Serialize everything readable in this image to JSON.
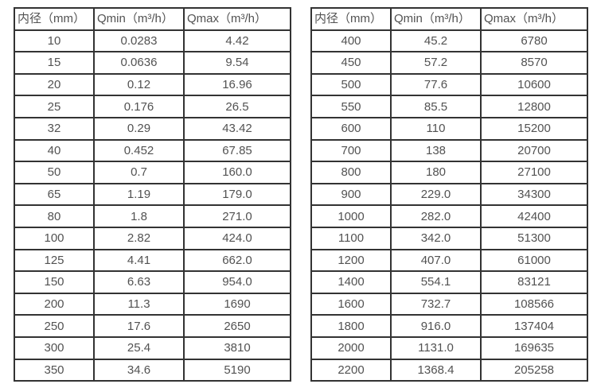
{
  "page": {
    "background": "#ffffff",
    "text_color": "#525252",
    "border_color": "#333333"
  },
  "tables": [
    {
      "name": "small-diameters",
      "headers": [
        "内径（mm）",
        "Qmin（m³/h）",
        "Qmax（m³/h）"
      ],
      "rows": [
        [
          "10",
          "0.0283",
          "4.42"
        ],
        [
          "15",
          "0.0636",
          "9.54"
        ],
        [
          "20",
          "0.12",
          "16.96"
        ],
        [
          "25",
          "0.176",
          "26.5"
        ],
        [
          "32",
          "0.29",
          "43.42"
        ],
        [
          "40",
          "0.452",
          "67.85"
        ],
        [
          "50",
          "0.7",
          "160.0"
        ],
        [
          "65",
          "1.19",
          "179.0"
        ],
        [
          "80",
          "1.8",
          "271.0"
        ],
        [
          "100",
          "2.82",
          "424.0"
        ],
        [
          "125",
          "4.41",
          "662.0"
        ],
        [
          "150",
          "6.63",
          "954.0"
        ],
        [
          "200",
          "11.3",
          "1690"
        ],
        [
          "250",
          "17.6",
          "2650"
        ],
        [
          "300",
          "25.4",
          "3810"
        ],
        [
          "350",
          "34.6",
          "5190"
        ]
      ]
    },
    {
      "name": "large-diameters",
      "headers": [
        "内径（mm）",
        "Qmin（m³/h）",
        "Qmax（m³/h）"
      ],
      "rows": [
        [
          "400",
          "45.2",
          "6780"
        ],
        [
          "450",
          "57.2",
          "8570"
        ],
        [
          "500",
          "77.6",
          "10600"
        ],
        [
          "550",
          "85.5",
          "12800"
        ],
        [
          "600",
          "110",
          "15200"
        ],
        [
          "700",
          "138",
          "20700"
        ],
        [
          "800",
          "180",
          "27100"
        ],
        [
          "900",
          "229.0",
          "34300"
        ],
        [
          "1000",
          "282.0",
          "42400"
        ],
        [
          "1100",
          "342.0",
          "51300"
        ],
        [
          "1200",
          "407.0",
          "61000"
        ],
        [
          "1400",
          "554.1",
          "83121"
        ],
        [
          "1600",
          "732.7",
          "108566"
        ],
        [
          "1800",
          "916.0",
          "137404"
        ],
        [
          "2000",
          "1131.0",
          "169635"
        ],
        [
          "2200",
          "1368.4",
          "205258"
        ]
      ]
    }
  ]
}
